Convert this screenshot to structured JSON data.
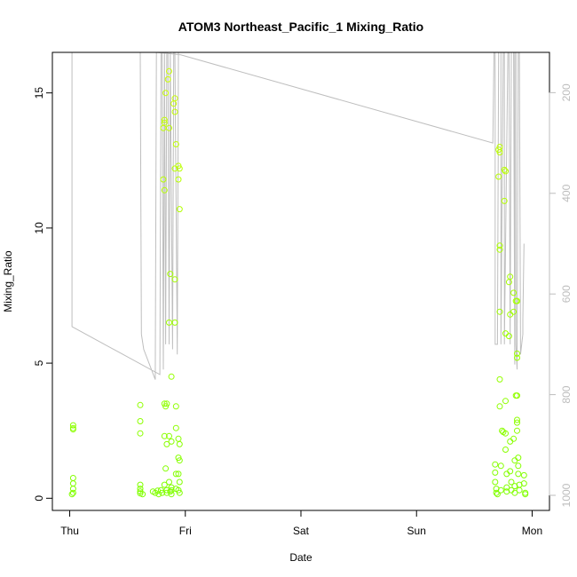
{
  "chart_data": {
    "type": "scatter",
    "title": "ATOM3 Northeast_Pacific_1 Mixing_Ratio",
    "xlabel": "Date",
    "ylabel": "Mixing_Ratio",
    "x_ticks": [
      {
        "day": 0,
        "label": "Thu"
      },
      {
        "day": 1,
        "label": "Fri"
      },
      {
        "day": 2,
        "label": "Sat"
      },
      {
        "day": 3,
        "label": "Sun"
      },
      {
        "day": 4,
        "label": "Mon"
      }
    ],
    "xlim": [
      -0.15,
      4.15
    ],
    "ylim": [
      -0.45,
      16.5
    ],
    "y_ticks": [
      0,
      5,
      10,
      15
    ],
    "y2_ticks": [
      200,
      400,
      600,
      800,
      1000
    ],
    "y2lim": [
      1030,
      120
    ],
    "colors": {
      "low": "#7fff00",
      "high": "#ccff00",
      "pressure_line": "#bebebe",
      "axis": "#000000",
      "y2_axis": "#bdbdbd"
    },
    "series": [
      {
        "values": [
          [
            0.03,
            2.7
          ],
          [
            0.03,
            2.6
          ],
          [
            0.03,
            2.55
          ],
          [
            0.03,
            0.75
          ],
          [
            0.03,
            0.55
          ],
          [
            0.03,
            0.35
          ],
          [
            0.03,
            0.2
          ],
          [
            0.02,
            0.15
          ],
          [
            0.61,
            3.45
          ],
          [
            0.61,
            2.85
          ],
          [
            0.61,
            2.4
          ],
          [
            0.61,
            0.5
          ],
          [
            0.61,
            0.35
          ],
          [
            0.61,
            0.25
          ],
          [
            0.61,
            0.18
          ],
          [
            0.63,
            0.15
          ],
          [
            0.72,
            0.25
          ],
          [
            0.74,
            0.2
          ],
          [
            0.76,
            0.28
          ],
          [
            0.77,
            0.15
          ],
          [
            0.79,
            0.3
          ],
          [
            0.8,
            0.2
          ],
          [
            0.81,
            13.7
          ],
          [
            0.81,
            11.8
          ],
          [
            0.82,
            14.0
          ],
          [
            0.82,
            13.9
          ],
          [
            0.83,
            15.0
          ],
          [
            0.82,
            11.4
          ],
          [
            0.82,
            3.5
          ],
          [
            0.82,
            2.3
          ],
          [
            0.82,
            0.5
          ],
          [
            0.83,
            3.4
          ],
          [
            0.84,
            3.5
          ],
          [
            0.84,
            2.0
          ],
          [
            0.83,
            1.1
          ],
          [
            0.84,
            0.3
          ],
          [
            0.84,
            0.2
          ],
          [
            0.85,
            15.5
          ],
          [
            0.86,
            15.8
          ],
          [
            0.86,
            13.7
          ],
          [
            0.86,
            6.5
          ],
          [
            0.86,
            2.3
          ],
          [
            0.86,
            0.6
          ],
          [
            0.87,
            0.25
          ],
          [
            0.87,
            8.3
          ],
          [
            0.88,
            4.5
          ],
          [
            0.88,
            2.1
          ],
          [
            0.88,
            0.4
          ],
          [
            0.88,
            0.3
          ],
          [
            0.88,
            0.15
          ],
          [
            0.9,
            14.6
          ],
          [
            0.91,
            14.3
          ],
          [
            0.91,
            14.8
          ],
          [
            0.91,
            12.2
          ],
          [
            0.92,
            13.1
          ],
          [
            0.91,
            8.1
          ],
          [
            0.91,
            6.5
          ],
          [
            0.92,
            3.4
          ],
          [
            0.92,
            2.6
          ],
          [
            0.92,
            0.9
          ],
          [
            0.92,
            0.35
          ],
          [
            0.94,
            12.3
          ],
          [
            0.95,
            12.2
          ],
          [
            0.94,
            11.8
          ],
          [
            0.95,
            10.7
          ],
          [
            0.94,
            2.2
          ],
          [
            0.95,
            2.0
          ],
          [
            0.94,
            1.5
          ],
          [
            0.95,
            1.4
          ],
          [
            0.94,
            0.9
          ],
          [
            0.95,
            0.6
          ],
          [
            0.94,
            0.3
          ],
          [
            0.95,
            0.2
          ],
          [
            3.68,
            1.25
          ],
          [
            3.68,
            0.95
          ],
          [
            3.68,
            0.6
          ],
          [
            3.69,
            0.35
          ],
          [
            3.69,
            0.2
          ],
          [
            3.7,
            0.15
          ],
          [
            3.71,
            12.9
          ],
          [
            3.71,
            11.9
          ],
          [
            3.72,
            13.0
          ],
          [
            3.72,
            12.8
          ],
          [
            3.72,
            9.2
          ],
          [
            3.72,
            9.35
          ],
          [
            3.72,
            6.9
          ],
          [
            3.72,
            4.4
          ],
          [
            3.72,
            3.4
          ],
          [
            3.73,
            1.2
          ],
          [
            3.73,
            0.3
          ],
          [
            3.74,
            2.5
          ],
          [
            3.75,
            2.45
          ],
          [
            3.76,
            11.0
          ],
          [
            3.76,
            12.15
          ],
          [
            3.77,
            12.1
          ],
          [
            3.77,
            6.1
          ],
          [
            3.77,
            3.6
          ],
          [
            3.77,
            2.4
          ],
          [
            3.77,
            1.8
          ],
          [
            3.78,
            0.9
          ],
          [
            3.78,
            0.4
          ],
          [
            3.78,
            0.25
          ],
          [
            3.8,
            8.0
          ],
          [
            3.81,
            8.2
          ],
          [
            3.81,
            6.8
          ],
          [
            3.8,
            6.0
          ],
          [
            3.81,
            2.1
          ],
          [
            3.81,
            1.0
          ],
          [
            3.82,
            0.6
          ],
          [
            3.82,
            0.3
          ],
          [
            3.84,
            7.6
          ],
          [
            3.84,
            6.9
          ],
          [
            3.84,
            2.2
          ],
          [
            3.85,
            1.4
          ],
          [
            3.85,
            0.45
          ],
          [
            3.85,
            0.2
          ],
          [
            3.86,
            7.3
          ],
          [
            3.87,
            7.3
          ],
          [
            3.87,
            5.2
          ],
          [
            3.87,
            5.35
          ],
          [
            3.86,
            3.8
          ],
          [
            3.87,
            3.8
          ],
          [
            3.87,
            2.9
          ],
          [
            3.87,
            2.8
          ],
          [
            3.87,
            2.5
          ],
          [
            3.88,
            1.5
          ],
          [
            3.88,
            1.2
          ],
          [
            3.88,
            0.9
          ],
          [
            3.89,
            0.5
          ],
          [
            3.89,
            0.3
          ],
          [
            3.93,
            0.85
          ],
          [
            3.93,
            0.55
          ],
          [
            3.94,
            0.2
          ],
          [
            3.94,
            0.15
          ]
        ]
      }
    ],
    "pressure_line": [
      [
        0.02,
        120
      ],
      [
        0.02,
        120
      ],
      [
        0.02,
        665
      ],
      [
        0.78,
        760
      ],
      [
        0.79,
        120
      ],
      [
        0.8,
        120
      ],
      [
        0.81,
        750
      ],
      [
        0.82,
        120
      ],
      [
        0.82,
        120
      ],
      [
        0.83,
        700
      ],
      [
        0.84,
        120
      ],
      [
        0.85,
        120
      ],
      [
        0.86,
        700
      ],
      [
        0.87,
        120
      ],
      [
        0.87,
        120
      ],
      [
        0.89,
        710
      ],
      [
        0.9,
        120
      ],
      [
        0.91,
        120
      ],
      [
        0.93,
        720
      ],
      [
        0.94,
        120
      ],
      [
        0.95,
        120
      ],
      [
        0.62,
        120
      ],
      [
        0.61,
        120
      ],
      [
        0.62,
        680
      ],
      [
        0.64,
        710
      ],
      [
        0.74,
        770
      ],
      [
        0.75,
        120
      ],
      [
        0.96,
        125
      ],
      [
        3.66,
        300
      ],
      [
        3.67,
        120
      ],
      [
        3.68,
        120
      ],
      [
        3.68,
        700
      ],
      [
        3.7,
        700
      ],
      [
        3.71,
        120
      ],
      [
        3.73,
        120
      ],
      [
        3.73,
        700
      ],
      [
        3.75,
        120
      ],
      [
        3.76,
        120
      ],
      [
        3.76,
        700
      ],
      [
        3.79,
        120
      ],
      [
        3.8,
        120
      ],
      [
        3.81,
        700
      ],
      [
        3.82,
        120
      ],
      [
        3.84,
        120
      ],
      [
        3.85,
        740
      ],
      [
        3.85,
        120
      ],
      [
        3.86,
        120
      ],
      [
        3.86,
        700
      ],
      [
        3.87,
        750
      ],
      [
        3.88,
        120
      ],
      [
        3.89,
        120
      ],
      [
        3.9,
        720
      ],
      [
        3.92,
        680
      ],
      [
        3.92,
        650
      ],
      [
        3.93,
        500
      ]
    ]
  }
}
